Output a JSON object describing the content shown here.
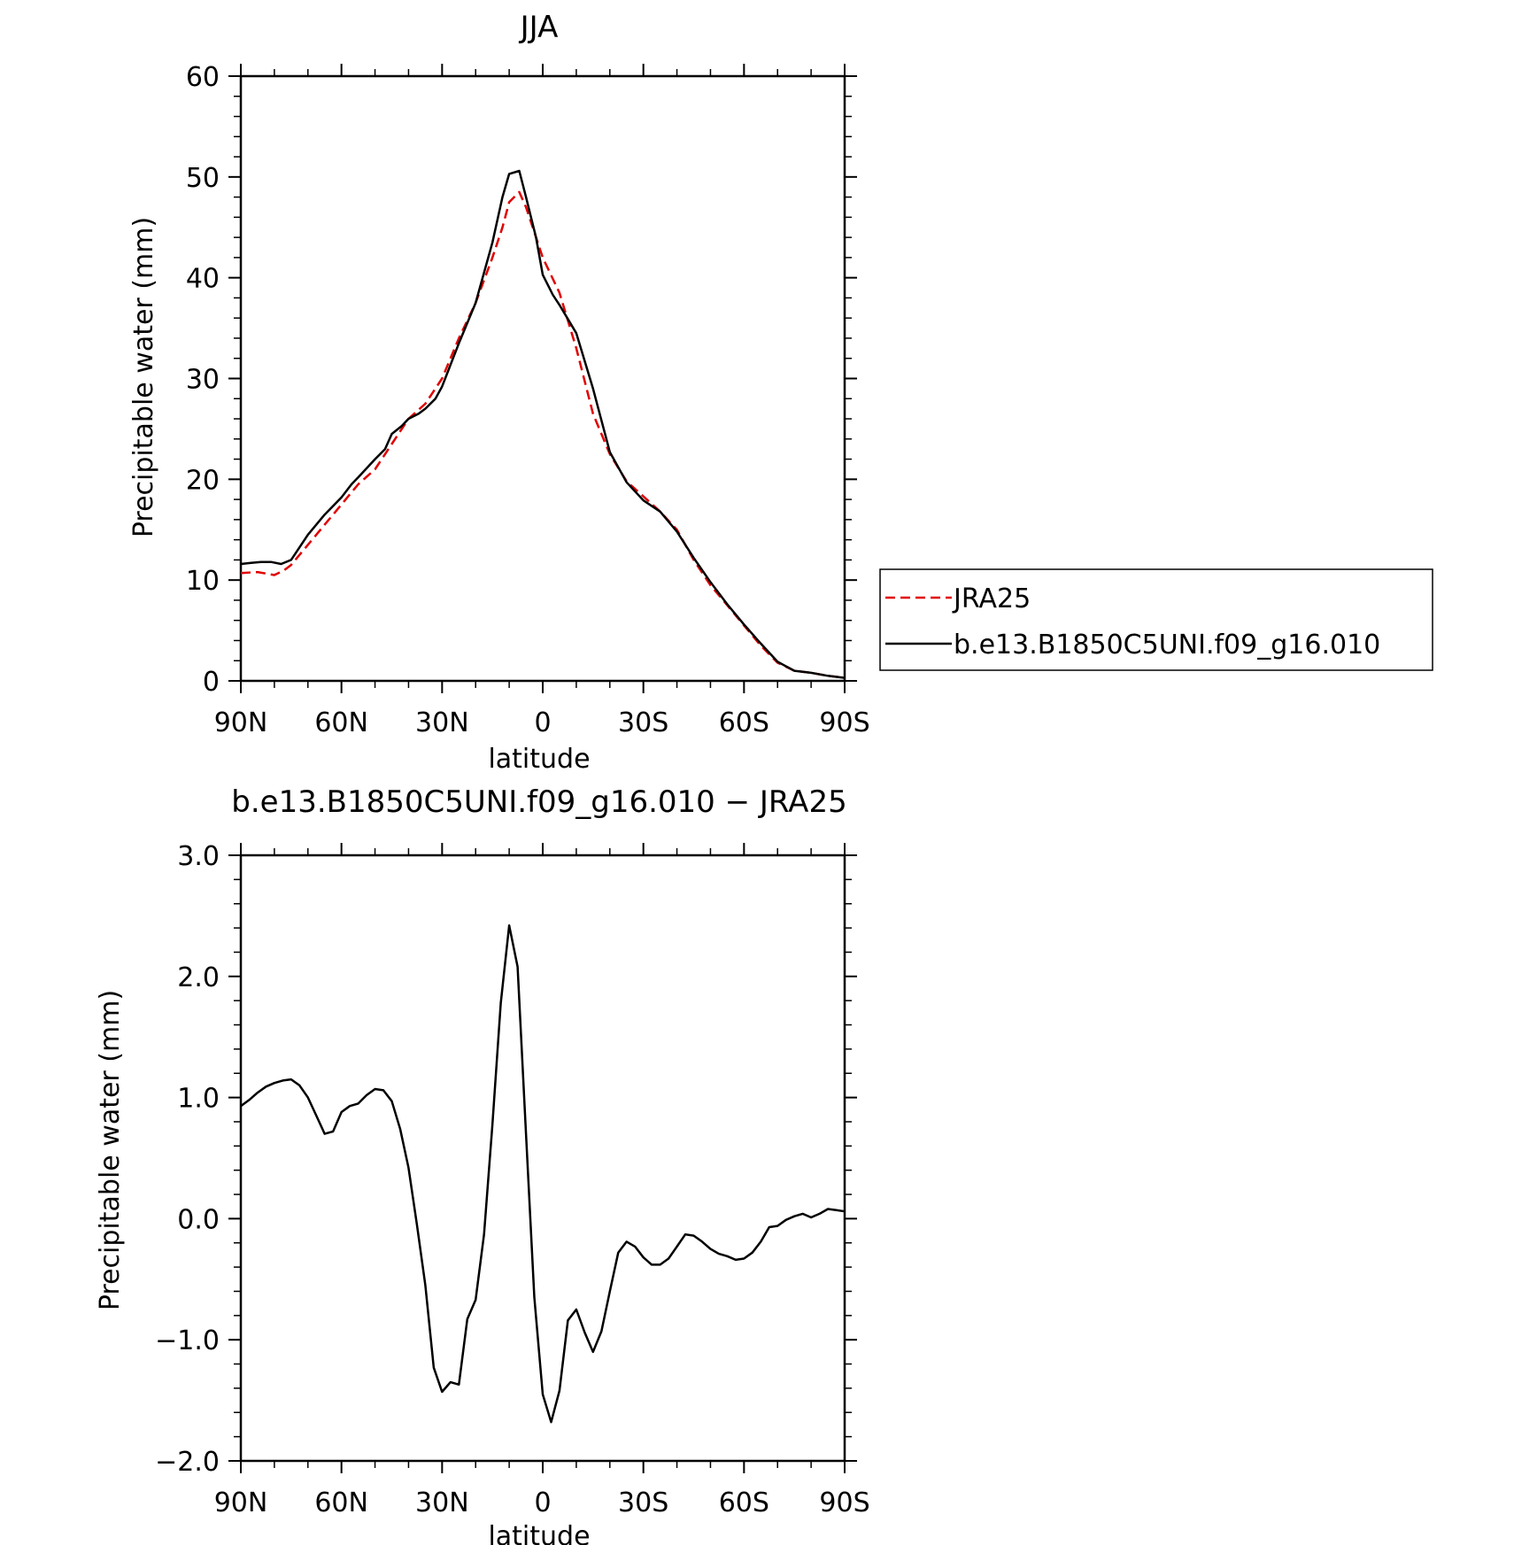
{
  "chart_data": [
    {
      "type": "line",
      "title": "JJA",
      "xlabel": "latitude",
      "ylabel": "Precipitable water (mm)",
      "xlim": [
        90,
        -90
      ],
      "ylim": [
        0,
        60
      ],
      "x_ticks": [
        90,
        60,
        30,
        0,
        -30,
        -60,
        -90
      ],
      "x_tick_labels": [
        "90N",
        "60N",
        "30N",
        "0",
        "30S",
        "60S",
        "90S"
      ],
      "y_ticks": [
        0,
        10,
        20,
        30,
        40,
        50,
        60
      ],
      "y_tick_labels": [
        "0",
        "10",
        "20",
        "30",
        "40",
        "50",
        "60"
      ],
      "legend": {
        "placement": "outside-right"
      },
      "series": [
        {
          "name": "JRA25",
          "color": "#e00000",
          "dash": "dashed",
          "x": [
            90,
            85,
            80,
            77,
            75,
            70,
            65,
            60,
            55,
            50,
            45,
            40,
            35,
            30,
            25,
            20,
            15,
            12,
            10,
            7,
            5,
            0,
            -5,
            -10,
            -15,
            -20,
            -25,
            -30,
            -35,
            -40,
            -45,
            -50,
            -55,
            -60,
            -65,
            -70,
            -75,
            -80,
            -85,
            -90
          ],
          "y": [
            10.7,
            10.8,
            10.5,
            11.0,
            11.5,
            13.5,
            15.5,
            17.5,
            19.5,
            21.0,
            23.5,
            26.0,
            27.5,
            30.0,
            34.0,
            37.5,
            42.0,
            45.0,
            47.5,
            48.5,
            47.0,
            42.0,
            38.5,
            33.0,
            26.5,
            22.5,
            19.8,
            18.3,
            16.8,
            15.0,
            12.0,
            9.5,
            7.5,
            5.5,
            3.5,
            1.8,
            1.0,
            0.8,
            0.5,
            0.3
          ]
        },
        {
          "name": "b.e13.B1850C5UNI.f09_g16.010",
          "color": "#000000",
          "dash": "solid",
          "x": [
            90,
            87,
            84,
            81,
            78,
            75,
            70,
            65,
            60,
            57,
            55,
            50,
            47,
            45,
            42,
            40,
            37,
            35,
            32,
            30,
            25,
            20,
            15,
            12,
            10,
            7,
            5,
            2,
            0,
            -3,
            -5,
            -10,
            -15,
            -20,
            -25,
            -30,
            -35,
            -40,
            -45,
            -50,
            -55,
            -60,
            -65,
            -70,
            -75,
            -80,
            -85,
            -90
          ],
          "y": [
            11.6,
            11.7,
            11.8,
            11.8,
            11.6,
            12.0,
            14.5,
            16.5,
            18.2,
            19.5,
            20.2,
            22.0,
            23.0,
            24.5,
            25.3,
            26.0,
            26.5,
            27.0,
            28.0,
            29.2,
            33.5,
            37.5,
            43.5,
            48.0,
            50.3,
            50.6,
            48.0,
            44.0,
            40.3,
            38.3,
            37.3,
            34.5,
            29.0,
            22.7,
            19.7,
            17.9,
            16.8,
            14.8,
            12.2,
            9.8,
            7.6,
            5.6,
            3.7,
            1.9,
            1.0,
            0.8,
            0.5,
            0.3
          ]
        }
      ]
    },
    {
      "type": "line",
      "title": "b.e13.B1850C5UNI.f09_g16.010 − JRA25",
      "xlabel": "latitude",
      "ylabel": "Precipitable water (mm)",
      "xlim": [
        90,
        -90
      ],
      "ylim": [
        -2.0,
        3.0
      ],
      "x_ticks": [
        90,
        60,
        30,
        0,
        -30,
        -60,
        -90
      ],
      "x_tick_labels": [
        "90N",
        "60N",
        "30N",
        "0",
        "30S",
        "60S",
        "90S"
      ],
      "y_ticks": [
        -2.0,
        -1.0,
        0.0,
        1.0,
        2.0,
        3.0
      ],
      "y_tick_labels": [
        "−2.0",
        "−1.0",
        "0.0",
        "1.0",
        "2.0",
        "3.0"
      ],
      "series": [
        {
          "color": "#000000",
          "dash": "solid",
          "x": [
            90,
            87.5,
            85,
            82.5,
            80,
            77.5,
            75,
            72.5,
            70,
            67.5,
            65,
            62.5,
            60,
            57.5,
            55,
            52.5,
            50,
            47.5,
            45,
            42.5,
            40,
            37.5,
            35,
            32.5,
            30,
            27.5,
            25,
            22.5,
            20,
            17.5,
            15,
            12.5,
            10,
            7.5,
            5,
            2.5,
            0,
            -2.5,
            -5,
            -7.5,
            -10,
            -12.5,
            -15,
            -17.5,
            -20,
            -22.5,
            -25,
            -27.5,
            -30,
            -32.5,
            -35,
            -37.5,
            -40,
            -42.5,
            -45,
            -47.5,
            -50,
            -52.5,
            -55,
            -57.5,
            -60,
            -62.5,
            -65,
            -67.5,
            -70,
            -72.5,
            -75,
            -77.5,
            -80,
            -82.5,
            -85,
            -87.5,
            -90
          ],
          "y": [
            0.93,
            0.98,
            1.04,
            1.09,
            1.12,
            1.14,
            1.15,
            1.1,
            1.0,
            0.85,
            0.7,
            0.72,
            0.88,
            0.93,
            0.95,
            1.02,
            1.07,
            1.06,
            0.97,
            0.74,
            0.42,
            -0.05,
            -0.55,
            -1.23,
            -1.43,
            -1.35,
            -1.37,
            -0.83,
            -0.67,
            -0.13,
            0.78,
            1.78,
            2.42,
            2.08,
            0.7,
            -0.65,
            -1.45,
            -1.68,
            -1.42,
            -0.84,
            -0.75,
            -0.94,
            -1.1,
            -0.93,
            -0.6,
            -0.28,
            -0.19,
            -0.23,
            -0.32,
            -0.38,
            -0.38,
            -0.33,
            -0.23,
            -0.13,
            -0.14,
            -0.19,
            -0.25,
            -0.29,
            -0.31,
            -0.34,
            -0.33,
            -0.28,
            -0.19,
            -0.07,
            -0.06,
            -0.01,
            0.02,
            0.04,
            0.01,
            0.04,
            0.08,
            0.07,
            0.06
          ]
        }
      ]
    }
  ],
  "legend_entries": [
    "JRA25",
    "b.e13.B1850C5UNI.f09_g16.010"
  ]
}
